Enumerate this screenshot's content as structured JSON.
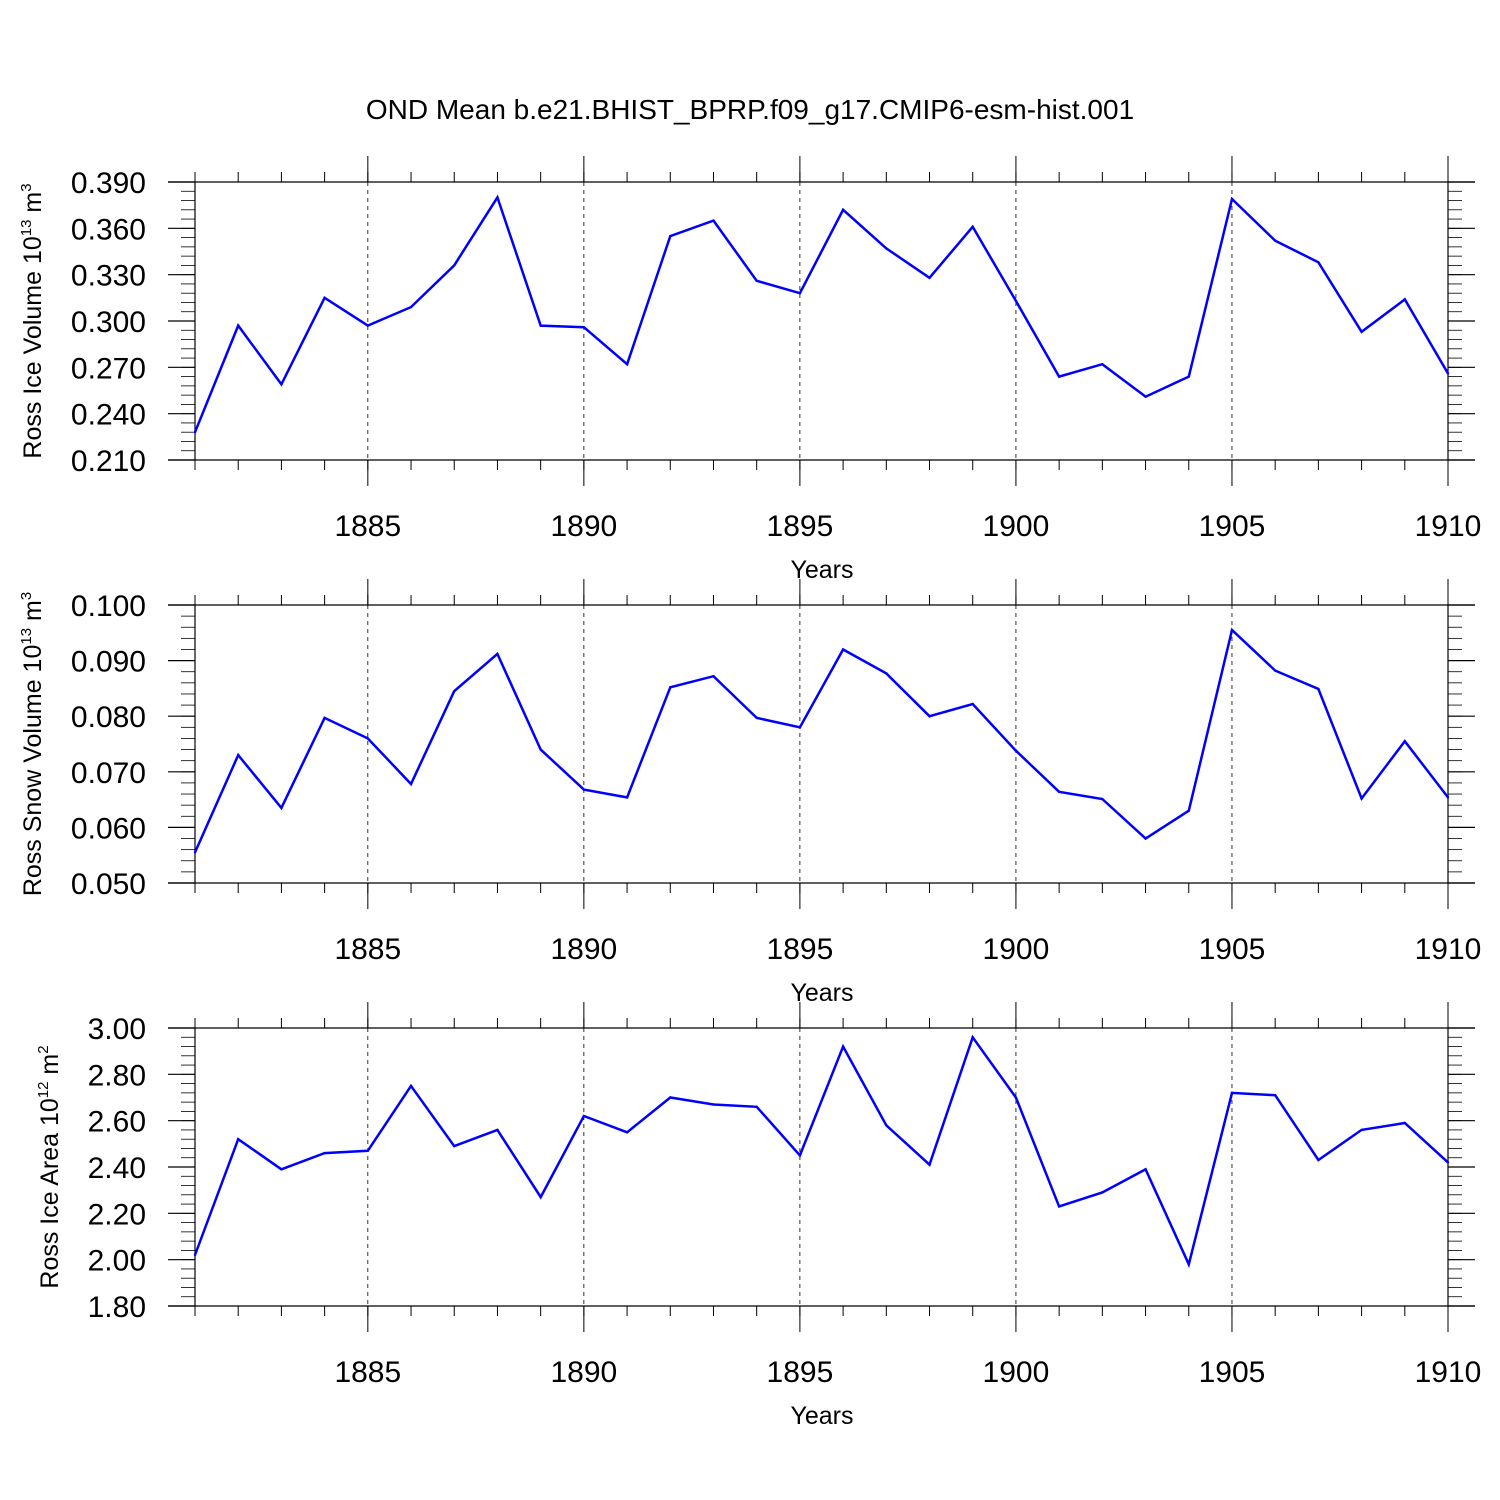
{
  "title": "OND Mean b.e21.BHIST_BPRP.f09_g17.CMIP6-esm-hist.001",
  "line_color": "#0000ff",
  "chart_data": [
    {
      "type": "line",
      "title": "OND Mean b.e21.BHIST_BPRP.f09_g17.CMIP6-esm-hist.001",
      "xlabel": "Years",
      "ylabel": {
        "main": "Ross Ice Volume 10",
        "exp": "13",
        "unit": " m",
        "unit_exp": "3"
      },
      "xlim": [
        1881,
        1910
      ],
      "ylim": [
        0.21,
        0.39
      ],
      "xticks": [
        "1885",
        "1890",
        "1895",
        "1900",
        "1905",
        "1910"
      ],
      "yticks": [
        "0.210",
        "0.240",
        "0.270",
        "0.300",
        "0.330",
        "0.360",
        "0.390"
      ],
      "x": [
        1881,
        1882,
        1883,
        1884,
        1885,
        1886,
        1887,
        1888,
        1889,
        1890,
        1891,
        1892,
        1893,
        1894,
        1895,
        1896,
        1897,
        1898,
        1899,
        1900,
        1901,
        1902,
        1903,
        1904,
        1905,
        1906,
        1907,
        1908,
        1909,
        1910
      ],
      "values": [
        0.228,
        0.297,
        0.259,
        0.315,
        0.297,
        0.309,
        0.336,
        0.38,
        0.297,
        0.296,
        0.272,
        0.355,
        0.365,
        0.326,
        0.318,
        0.372,
        0.347,
        0.328,
        0.361,
        0.313,
        0.264,
        0.272,
        0.251,
        0.264,
        0.379,
        0.352,
        0.338,
        0.293,
        0.314,
        0.266
      ]
    },
    {
      "type": "line",
      "xlabel": "Years",
      "ylabel": {
        "main": "Ross Snow Volume 10",
        "exp": "13",
        "unit": " m",
        "unit_exp": "3"
      },
      "xlim": [
        1881,
        1910
      ],
      "ylim": [
        0.05,
        0.1
      ],
      "xticks": [
        "1885",
        "1890",
        "1895",
        "1900",
        "1905",
        "1910"
      ],
      "yticks": [
        "0.050",
        "0.060",
        "0.070",
        "0.080",
        "0.090",
        "0.100"
      ],
      "x": [
        1881,
        1882,
        1883,
        1884,
        1885,
        1886,
        1887,
        1888,
        1889,
        1890,
        1891,
        1892,
        1893,
        1894,
        1895,
        1896,
        1897,
        1898,
        1899,
        1900,
        1901,
        1902,
        1903,
        1904,
        1905,
        1906,
        1907,
        1908,
        1909,
        1910
      ],
      "values": [
        0.0555,
        0.073,
        0.0635,
        0.0797,
        0.076,
        0.0678,
        0.0845,
        0.0912,
        0.074,
        0.0668,
        0.0654,
        0.0852,
        0.0872,
        0.0797,
        0.078,
        0.092,
        0.0877,
        0.08,
        0.0822,
        0.0738,
        0.0664,
        0.0651,
        0.058,
        0.063,
        0.0955,
        0.0882,
        0.0849,
        0.0652,
        0.0755,
        0.0654
      ]
    },
    {
      "type": "line",
      "xlabel": "Years",
      "ylabel": {
        "main": "Ross Ice Area 10",
        "exp": "12",
        "unit": " m",
        "unit_exp": "2"
      },
      "xlim": [
        1881,
        1910
      ],
      "ylim": [
        1.8,
        3.0
      ],
      "xticks": [
        "1885",
        "1890",
        "1895",
        "1900",
        "1905",
        "1910"
      ],
      "yticks": [
        "1.80",
        "2.00",
        "2.20",
        "2.40",
        "2.60",
        "2.80",
        "3.00"
      ],
      "x": [
        1881,
        1882,
        1883,
        1884,
        1885,
        1886,
        1887,
        1888,
        1889,
        1890,
        1891,
        1892,
        1893,
        1894,
        1895,
        1896,
        1897,
        1898,
        1899,
        1900,
        1901,
        1902,
        1903,
        1904,
        1905,
        1906,
        1907,
        1908,
        1909,
        1910
      ],
      "values": [
        2.02,
        2.52,
        2.39,
        2.46,
        2.47,
        2.75,
        2.49,
        2.56,
        2.27,
        2.62,
        2.55,
        2.7,
        2.67,
        2.66,
        2.45,
        2.92,
        2.58,
        2.41,
        2.96,
        2.7,
        2.23,
        2.29,
        2.39,
        1.98,
        2.72,
        2.71,
        2.43,
        2.56,
        2.59,
        2.42
      ]
    }
  ]
}
